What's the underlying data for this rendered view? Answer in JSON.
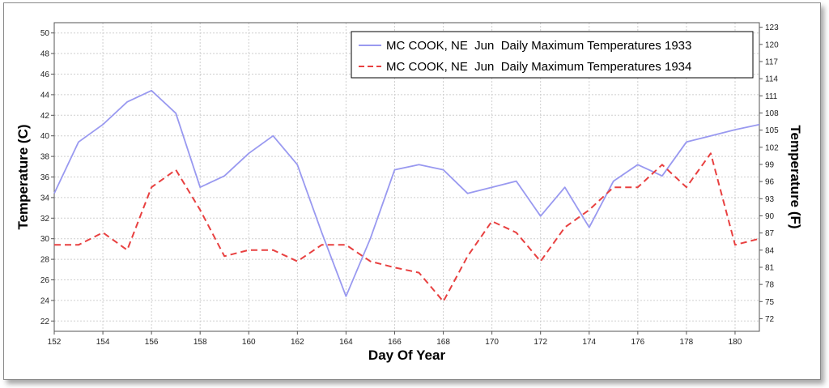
{
  "chart_data": {
    "type": "line",
    "xlabel": "Day Of Year",
    "ylabel_left": "Temperature (C)",
    "ylabel_right": "Temperature (F)",
    "xlim": [
      152,
      181
    ],
    "ylim_left": [
      21,
      51
    ],
    "ylim_right": [
      69.8,
      123.8
    ],
    "x_ticks": [
      "152",
      "154",
      "156",
      "158",
      "160",
      "162",
      "164",
      "166",
      "168",
      "170",
      "172",
      "174",
      "176",
      "178",
      "180"
    ],
    "y_ticks_left": [
      "22",
      "24",
      "26",
      "28",
      "30",
      "32",
      "34",
      "36",
      "38",
      "40",
      "42",
      "44",
      "46",
      "48",
      "50"
    ],
    "y_ticks_right": [
      "72",
      "75",
      "78",
      "81",
      "84",
      "87",
      "90",
      "93",
      "96",
      "99",
      "102",
      "105",
      "108",
      "111",
      "114",
      "117",
      "120",
      "123"
    ],
    "grid": true,
    "legend_position": "top-right",
    "series": [
      {
        "name": "MC COOK, NE  Jun  Daily Maximum Temperatures 1933",
        "color": "#9999f0",
        "style": "solid",
        "x": [
          152,
          153,
          154,
          155,
          156,
          157,
          158,
          159,
          160,
          161,
          162,
          163,
          164,
          165,
          166,
          167,
          168,
          169,
          170,
          171,
          172,
          173,
          174,
          175,
          176,
          177,
          178,
          179,
          180,
          181
        ],
        "values": [
          34.4,
          39.4,
          41.1,
          43.3,
          44.4,
          42.2,
          35.0,
          36.1,
          38.3,
          40.0,
          37.2,
          30.6,
          24.4,
          30.0,
          36.7,
          37.2,
          36.7,
          34.4,
          35.0,
          35.6,
          32.2,
          35.0,
          31.1,
          35.6,
          37.2,
          36.1,
          39.4,
          40.0,
          40.6,
          41.1
        ]
      },
      {
        "name": "MC COOK, NE  Jun  Daily Maximum Temperatures 1934",
        "color": "#e84040",
        "style": "dashed",
        "x": [
          152,
          153,
          154,
          155,
          156,
          157,
          158,
          159,
          160,
          161,
          162,
          163,
          164,
          165,
          166,
          167,
          168,
          169,
          170,
          171,
          172,
          173,
          174,
          175,
          176,
          177,
          178,
          179,
          180,
          181
        ],
        "values": [
          29.4,
          29.4,
          30.6,
          28.9,
          35.0,
          36.7,
          32.8,
          28.3,
          28.9,
          28.9,
          27.8,
          29.4,
          29.4,
          27.8,
          27.2,
          26.7,
          23.9,
          28.3,
          31.7,
          30.6,
          27.8,
          31.1,
          32.8,
          35.0,
          35.0,
          37.2,
          35.0,
          38.3,
          29.4,
          30.0
        ]
      }
    ]
  }
}
